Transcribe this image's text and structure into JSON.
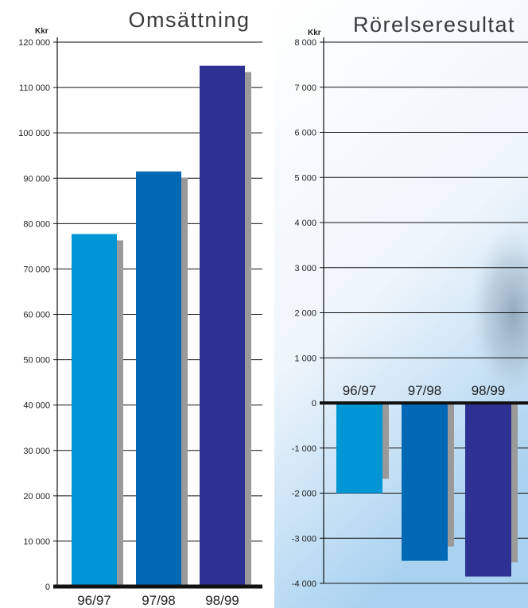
{
  "chart_data": [
    {
      "type": "bar",
      "title": "Omsättning",
      "unit_label": "Kkr",
      "categories": [
        "96/97",
        "97/98",
        "98/99"
      ],
      "values": [
        77700,
        91500,
        114800
      ],
      "ylim": [
        0,
        120000
      ],
      "yticks": [
        0,
        10000,
        20000,
        30000,
        40000,
        50000,
        60000,
        70000,
        80000,
        90000,
        100000,
        110000,
        120000
      ],
      "ytick_labels": [
        "0",
        "10 000",
        "20 000",
        "30 000",
        "40 000",
        "50 000",
        "60 000",
        "70 000",
        "80 000",
        "90 000",
        "100 000",
        "110 000",
        "120 000"
      ],
      "grid": true,
      "bar_colors": [
        "#0096d6",
        "#0068b5",
        "#2e3192"
      ],
      "shadow_color": "#9a9a9a"
    },
    {
      "type": "bar",
      "title": "Rörelseresultat",
      "unit_label": "Kkr",
      "categories": [
        "96/97",
        "97/98",
        "98/99"
      ],
      "values": [
        -2000,
        -3500,
        -3850
      ],
      "ylim": [
        -4000,
        8000
      ],
      "yticks": [
        -4000,
        -3000,
        -2000,
        -1000,
        0,
        1000,
        2000,
        3000,
        4000,
        5000,
        6000,
        7000,
        8000
      ],
      "ytick_labels": [
        "-4 000",
        "-3 000",
        "-2 000",
        "-1 000",
        "0",
        "1 000",
        "2 000",
        "3 000",
        "4 000",
        "5 000",
        "6 000",
        "7 000",
        "8 000"
      ],
      "grid": true,
      "bar_colors": [
        "#0096d6",
        "#0068b5",
        "#2e3192"
      ],
      "shadow_color": "#9a9a9a"
    }
  ]
}
